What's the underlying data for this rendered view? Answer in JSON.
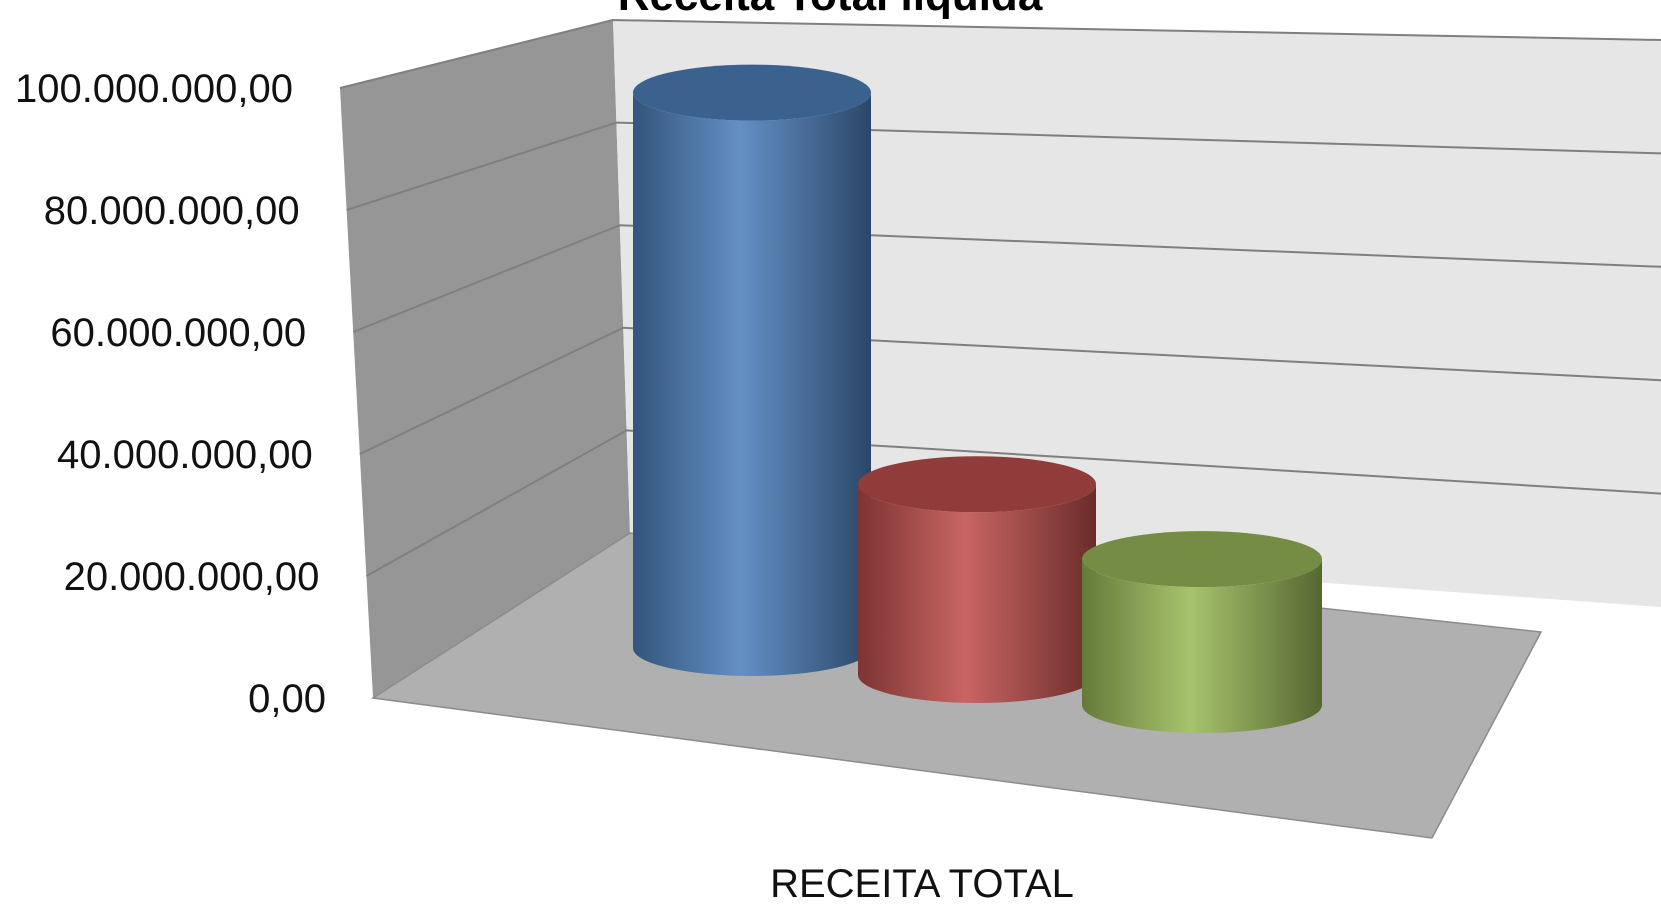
{
  "chart_data": {
    "type": "bar",
    "style": "3d-cylinder",
    "title": "Receita Total líquida",
    "categories": [
      "RECEITA TOTAL"
    ],
    "series": [
      {
        "values": [
          99000000
        ],
        "color": "#4f81bd"
      },
      {
        "values": [
          34000000
        ],
        "color": "#c0504d"
      },
      {
        "values": [
          26000000
        ],
        "color": "#9bbb59"
      }
    ],
    "ylim": [
      0,
      100000000
    ],
    "y_ticks": [
      0,
      20000000,
      40000000,
      60000000,
      80000000,
      100000000
    ],
    "y_tick_labels": [
      "0,00",
      "20.000.000,00",
      "40.000.000,00",
      "60.000.000,00",
      "80.000.000,00",
      "100.000.000,00"
    ],
    "grid": true,
    "legend": "none",
    "wall_color": "#e6e6e6",
    "side_wall_color": "#969696",
    "floor_color": "#b0b0b0"
  }
}
